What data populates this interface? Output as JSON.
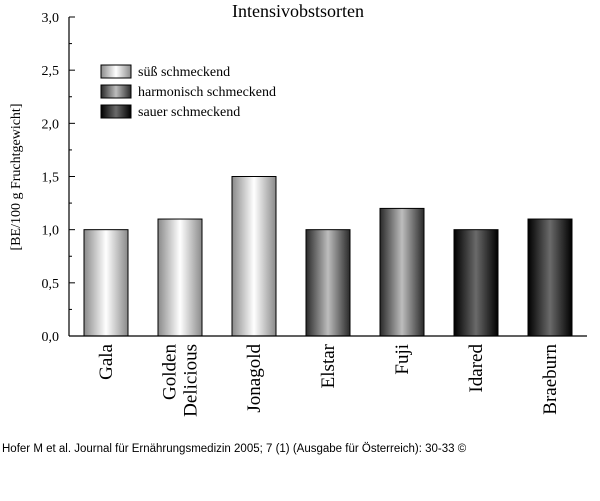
{
  "chart_data": {
    "type": "bar",
    "title": "Intensivobstsorten",
    "ylabel": "[BE/100 g Fruchtgewicht]",
    "xlabel": "",
    "ylim": [
      0,
      3.0
    ],
    "yticks": [
      "0,0",
      "0,5",
      "1,0",
      "1,5",
      "2,0",
      "2,5",
      "3,0"
    ],
    "categories": [
      "Gala",
      "Golden Delicious",
      "Jonagold",
      "Elstar",
      "Fuji",
      "Idared",
      "Braeburn"
    ],
    "category_lines": [
      [
        "Gala"
      ],
      [
        "Golden",
        "Delicious"
      ],
      [
        "Jonagold"
      ],
      [
        "Elstar"
      ],
      [
        "Fuji"
      ],
      [
        "Idared"
      ],
      [
        "Braeburn"
      ]
    ],
    "values": [
      1.0,
      1.1,
      1.5,
      1.0,
      1.2,
      1.0,
      1.1
    ],
    "taste_group": [
      "sweet",
      "sweet",
      "sweet",
      "harmonic",
      "harmonic",
      "sour",
      "sour"
    ],
    "legend": [
      {
        "key": "sweet",
        "label": "süß schmeckend"
      },
      {
        "key": "harmonic",
        "label": "harmonisch schmeckend"
      },
      {
        "key": "sour",
        "label": "sauer schmeckend"
      }
    ],
    "legend_position": "top-left",
    "grid": false,
    "colors": {
      "sweet": [
        "#8a8a8a",
        "#ffffff",
        "#8a8a8a"
      ],
      "harmonic": [
        "#2a2a2a",
        "#bdbdbd",
        "#2a2a2a"
      ],
      "sour": [
        "#000000",
        "#6a6a6a",
        "#000000"
      ]
    }
  },
  "footer": {
    "caption": "Hofer M et al. Journal für Ernährungsmedizin 2005; 7 (1) (Ausgabe für Österreich): 30-33 ©"
  }
}
